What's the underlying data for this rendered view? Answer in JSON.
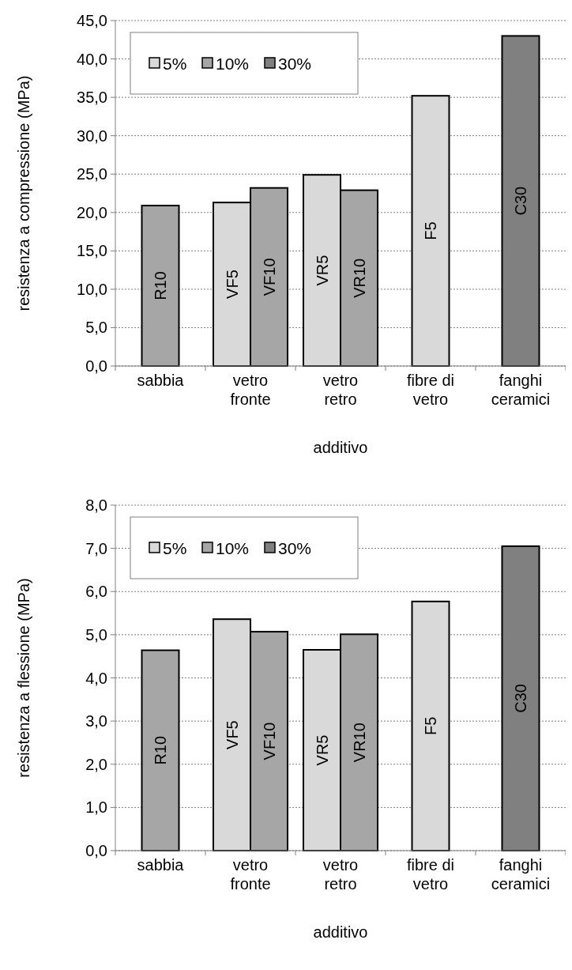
{
  "chart_data": [
    {
      "type": "bar",
      "xlabel": "additivo",
      "ylabel": "resistenza a compressione (MPa)",
      "categories": [
        "sabbia",
        "vetro\nfronte",
        "vetro\nretro",
        "fibre di\nvetro",
        "fanghi\nceramici"
      ],
      "series": [
        {
          "name": "5%",
          "color": "#d9d9d9",
          "values": [
            null,
            21.3,
            24.9,
            35.2,
            null
          ],
          "value_labels": [
            null,
            "VF5",
            "VR5",
            "F5",
            null
          ]
        },
        {
          "name": "10%",
          "color": "#a6a6a6",
          "values": [
            20.9,
            23.2,
            22.9,
            null,
            null
          ],
          "value_labels": [
            "R10",
            "VF10",
            "VR10",
            null,
            null
          ]
        },
        {
          "name": "30%",
          "color": "#808080",
          "values": [
            null,
            null,
            null,
            null,
            43.0
          ],
          "value_labels": [
            null,
            null,
            null,
            null,
            "C30"
          ]
        }
      ],
      "ylim": [
        0,
        45
      ],
      "yticks": [
        {
          "value": 0,
          "label": "0,0"
        },
        {
          "value": 5,
          "label": "5,0"
        },
        {
          "value": 10,
          "label": "10,0"
        },
        {
          "value": 15,
          "label": "15,0"
        },
        {
          "value": 20,
          "label": "20,0"
        },
        {
          "value": 25,
          "label": "25,0"
        },
        {
          "value": 30,
          "label": "30,0"
        },
        {
          "value": 35,
          "label": "35,0"
        },
        {
          "value": 40,
          "label": "40,0"
        },
        {
          "value": 45,
          "label": "45,0"
        }
      ],
      "grid": "y",
      "legend": "top left"
    },
    {
      "type": "bar",
      "xlabel": "additivo",
      "ylabel": "resistenza a flessione (MPa)",
      "categories": [
        "sabbia",
        "vetro\nfronte",
        "vetro\nretro",
        "fibre di\nvetro",
        "fanghi\nceramici"
      ],
      "series": [
        {
          "name": "5%",
          "color": "#d9d9d9",
          "values": [
            null,
            5.36,
            4.65,
            5.77,
            null
          ],
          "value_labels": [
            null,
            "VF5",
            "VR5",
            "F5",
            null
          ]
        },
        {
          "name": "10%",
          "color": "#a6a6a6",
          "values": [
            4.64,
            5.07,
            5.01,
            null,
            null
          ],
          "value_labels": [
            "R10",
            "VF10",
            "VR10",
            null,
            null
          ]
        },
        {
          "name": "30%",
          "color": "#808080",
          "values": [
            null,
            null,
            null,
            null,
            7.05
          ],
          "value_labels": [
            null,
            null,
            null,
            null,
            "C30"
          ]
        }
      ],
      "ylim": [
        0,
        8
      ],
      "yticks": [
        {
          "value": 0,
          "label": "0,0"
        },
        {
          "value": 1,
          "label": "1,0"
        },
        {
          "value": 2,
          "label": "2,0"
        },
        {
          "value": 3,
          "label": "3,0"
        },
        {
          "value": 4,
          "label": "4,0"
        },
        {
          "value": 5,
          "label": "5,0"
        },
        {
          "value": 6,
          "label": "6,0"
        },
        {
          "value": 7,
          "label": "7,0"
        },
        {
          "value": 8,
          "label": "8,0"
        }
      ],
      "grid": "y",
      "legend": "top left"
    }
  ]
}
